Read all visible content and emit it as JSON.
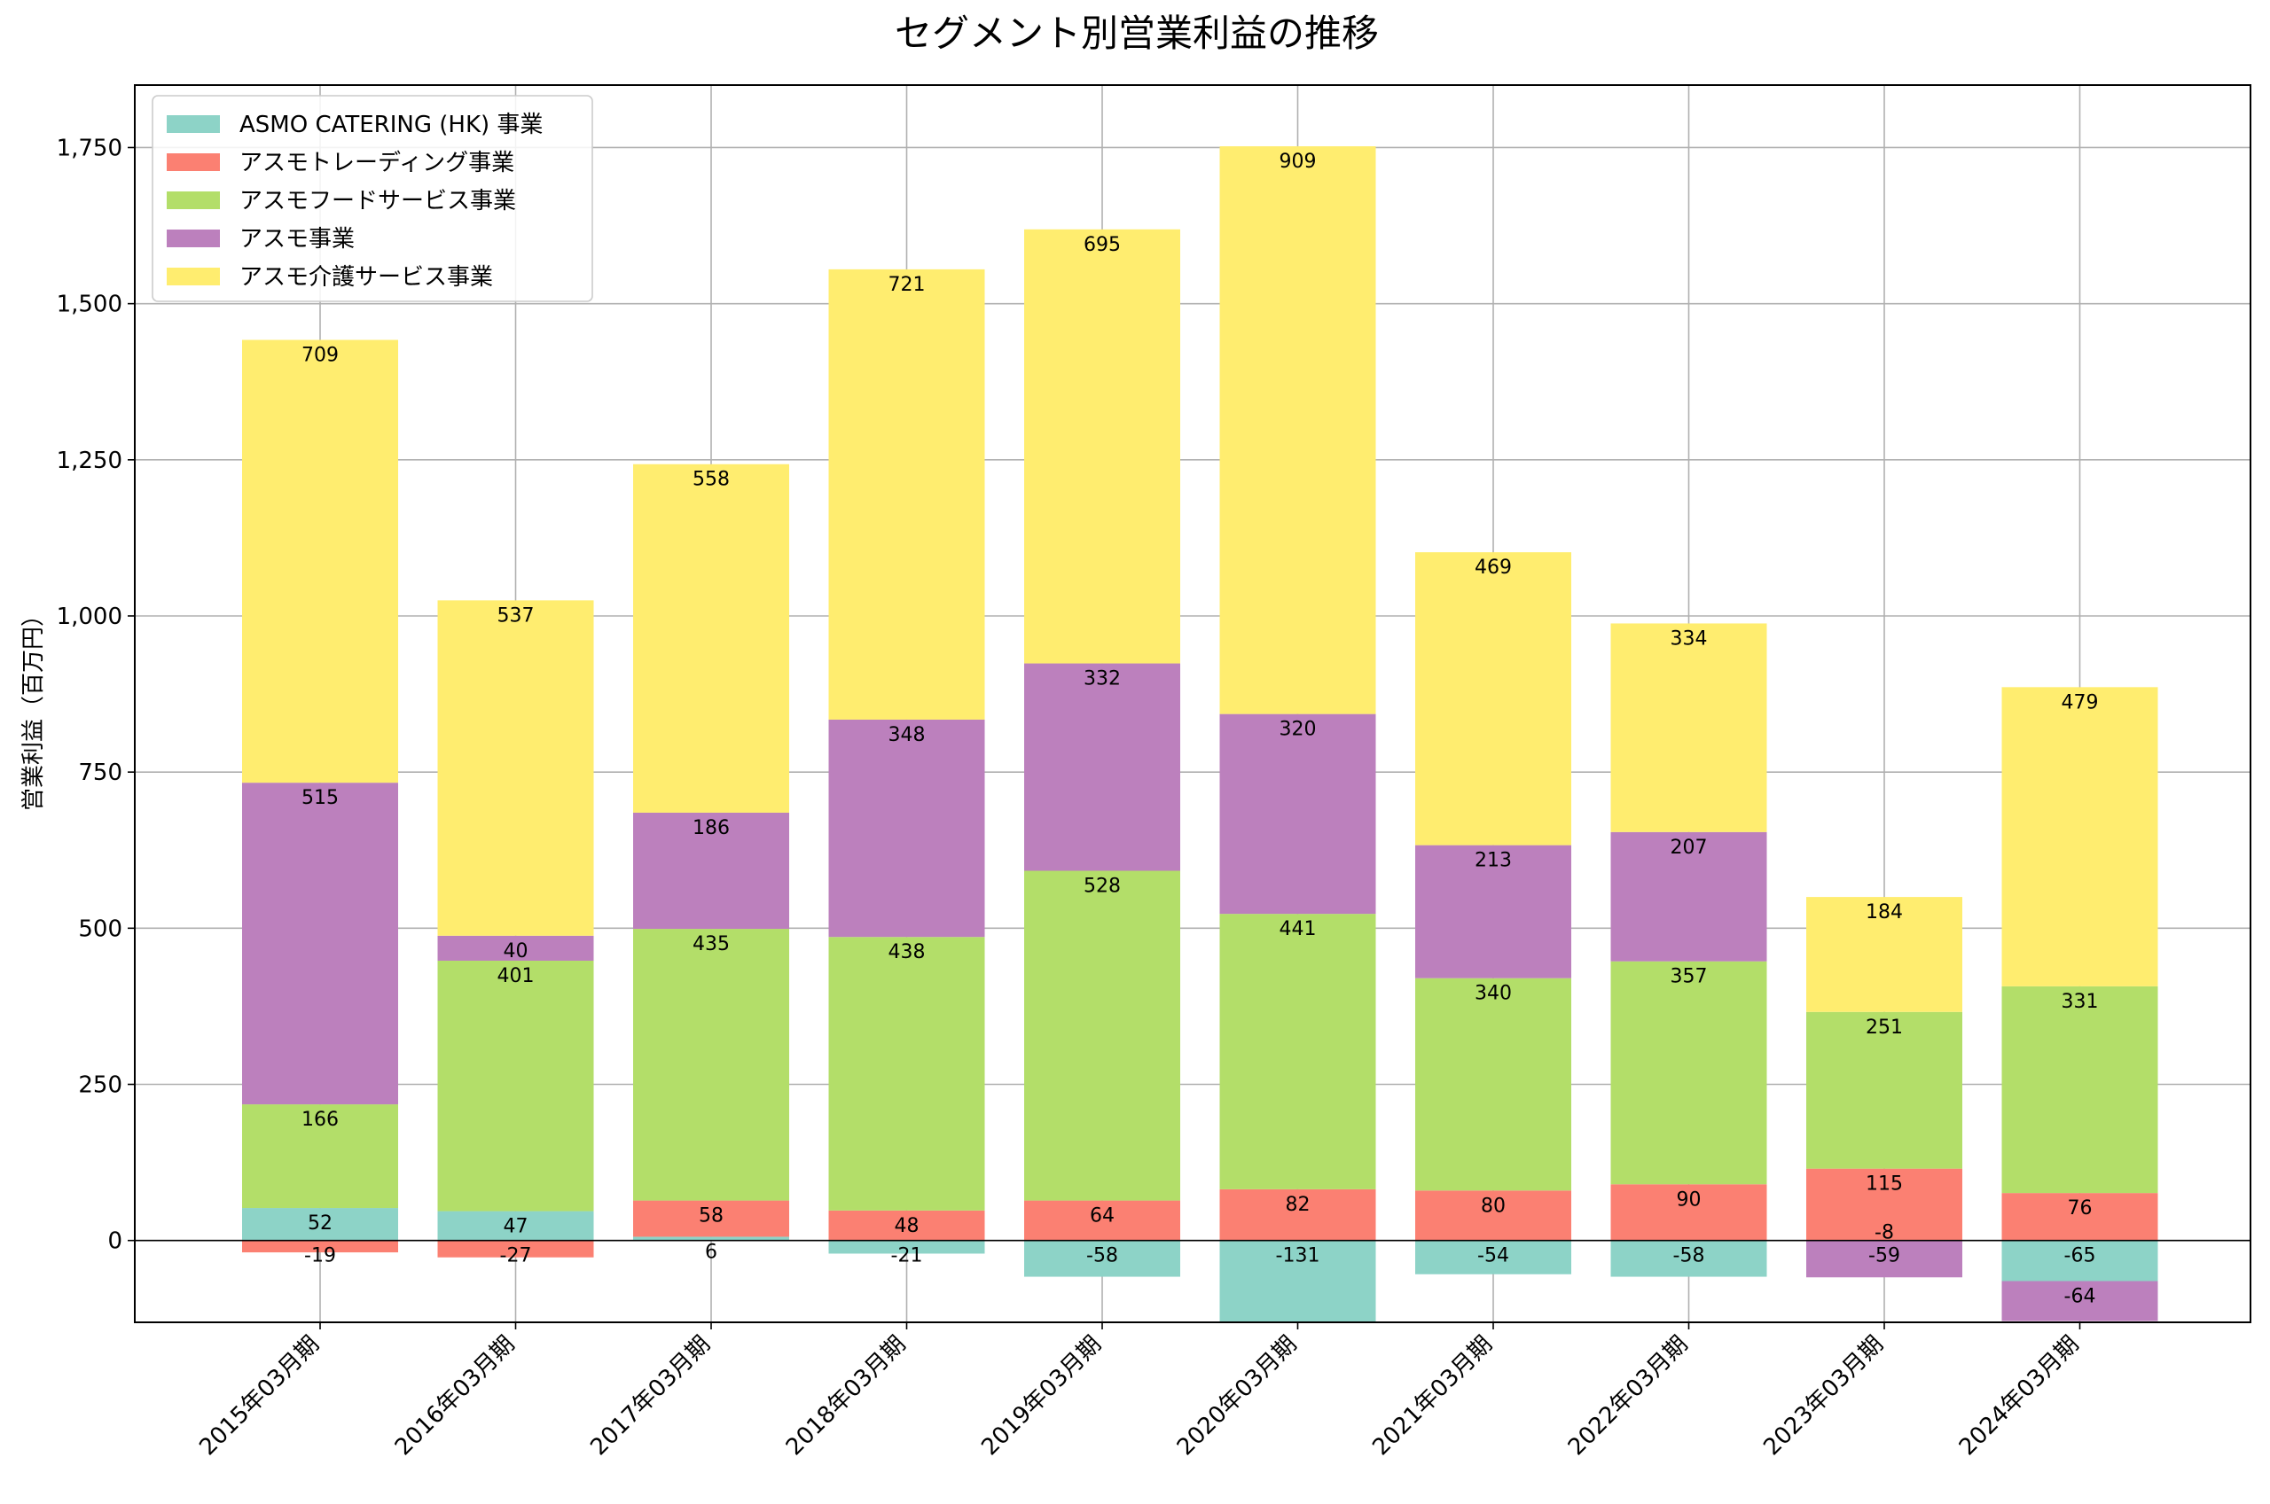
{
  "chart_data": {
    "type": "bar",
    "stacked": true,
    "title": "セグメント別営業利益の推移",
    "xlabel": "",
    "ylabel": "営業利益（百万円）",
    "ylim": [
      -131,
      1850
    ],
    "yticks": [
      0,
      250,
      500,
      750,
      1000,
      1250,
      1500,
      1750
    ],
    "ytick_labels": [
      "0",
      "250",
      "500",
      "750",
      "1,000",
      "1,250",
      "1,500",
      "1,750"
    ],
    "grid": true,
    "legend_position": "top-left",
    "categories": [
      "2015年03月期",
      "2016年03月期",
      "2017年03月期",
      "2018年03月期",
      "2019年03月期",
      "2020年03月期",
      "2021年03月期",
      "2022年03月期",
      "2023年03月期",
      "2024年03月期"
    ],
    "series": [
      {
        "name": "ASMO CATERING (HK) 事業",
        "color": "#8dd3c7",
        "values": [
          52,
          47,
          6,
          -21,
          -58,
          -131,
          -54,
          -58,
          null,
          -65
        ]
      },
      {
        "name": "アスモトレーディング事業",
        "color": "#fb8072",
        "values": [
          -19,
          -27,
          58,
          48,
          64,
          82,
          80,
          90,
          115,
          76
        ]
      },
      {
        "name": "アスモフードサービス事業",
        "color": "#b3de69",
        "values": [
          166,
          401,
          435,
          438,
          528,
          441,
          340,
          357,
          251,
          331
        ]
      },
      {
        "name": "アスモ事業",
        "color": "#bc80bd",
        "values": [
          515,
          40,
          186,
          348,
          332,
          320,
          213,
          207,
          -59,
          -64
        ]
      },
      {
        "name": "アスモ介護サービス事業",
        "color": "#ffed6f",
        "values": [
          709,
          537,
          558,
          721,
          695,
          909,
          469,
          334,
          184,
          479
        ]
      }
    ],
    "extra_labels": [
      {
        "category_index": 8,
        "value": -8
      }
    ]
  }
}
